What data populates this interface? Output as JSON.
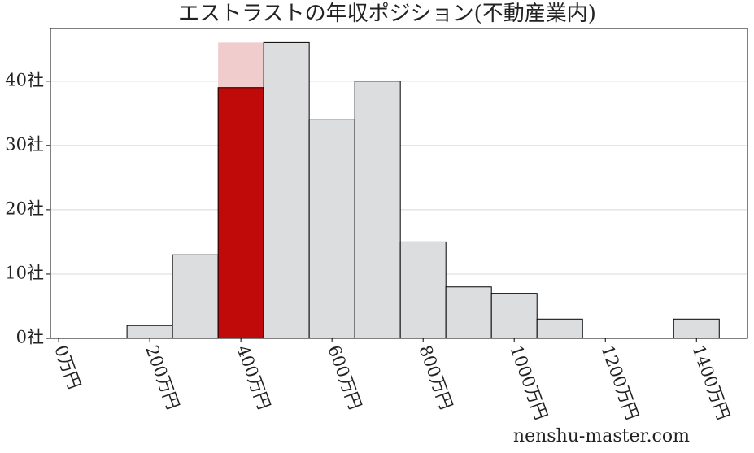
{
  "chart_data": {
    "type": "histogram",
    "title": "エストラストの年収ポジション(不動産業内)",
    "bins": [
      150,
      250,
      350,
      450,
      550,
      650,
      750,
      850,
      950,
      1050,
      1150,
      1250,
      1350,
      1450
    ],
    "values": [
      2,
      13,
      39,
      46,
      34,
      40,
      15,
      8,
      7,
      3,
      0,
      0,
      3
    ],
    "color": "#dcdddf",
    "highlight": {
      "bin": 2,
      "color": "#c00a0a",
      "backdrop_value": 46,
      "backdrop_color": "#f0cccc"
    },
    "xlim": [
      -18,
      1512
    ],
    "ylim": [
      0,
      48.2
    ],
    "xticks": [
      {
        "value": 0,
        "label": "0万円"
      },
      {
        "value": 200,
        "label": "200万円"
      },
      {
        "value": 400,
        "label": "400万円"
      },
      {
        "value": 600,
        "label": "600万円"
      },
      {
        "value": 800,
        "label": "800万円"
      },
      {
        "value": 1000,
        "label": "1000万円"
      },
      {
        "value": 1200,
        "label": "1200万円"
      },
      {
        "value": 1400,
        "label": "1400万円"
      }
    ],
    "yticks": [
      {
        "value": 0,
        "label": "0社"
      },
      {
        "value": 10,
        "label": "10社"
      },
      {
        "value": 20,
        "label": "20社"
      },
      {
        "value": 30,
        "label": "30社"
      },
      {
        "value": 40,
        "label": "40社"
      }
    ],
    "grid": true,
    "watermark": "nenshu-master.com"
  }
}
